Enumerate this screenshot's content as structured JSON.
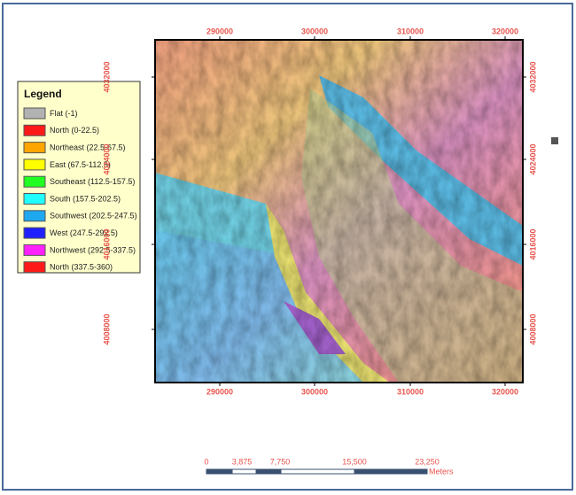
{
  "legend": {
    "title": "Legend",
    "items": [
      {
        "label": "Flat (-1)",
        "color": "#b2b2b2"
      },
      {
        "label": "North (0-22.5)",
        "color": "#ff1a1a"
      },
      {
        "label": "Northeast (22.5-67.5)",
        "color": "#ffa500"
      },
      {
        "label": "East (67.5-112.5)",
        "color": "#ffff00"
      },
      {
        "label": "Southeast (112.5-157.5)",
        "color": "#22ff22"
      },
      {
        "label": "South (157.5-202.5)",
        "color": "#22ffff"
      },
      {
        "label": "Southwest (202.5-247.5)",
        "color": "#1ea8f0"
      },
      {
        "label": "West (247.5-292.5)",
        "color": "#2020ff"
      },
      {
        "label": "Northwest (292.5-337.5)",
        "color": "#ff22ff"
      },
      {
        "label": "North (337.5-360)",
        "color": "#ff1a1a"
      }
    ]
  },
  "x_labels": [
    "290000",
    "300000",
    "310000",
    "320000"
  ],
  "y_labels": [
    "4032000",
    "4024000",
    "4016000",
    "4008000"
  ],
  "scale_bar": {
    "labels": [
      "0",
      "3,875",
      "7,750",
      "15,500",
      "23,250"
    ],
    "unit": "Meters"
  }
}
